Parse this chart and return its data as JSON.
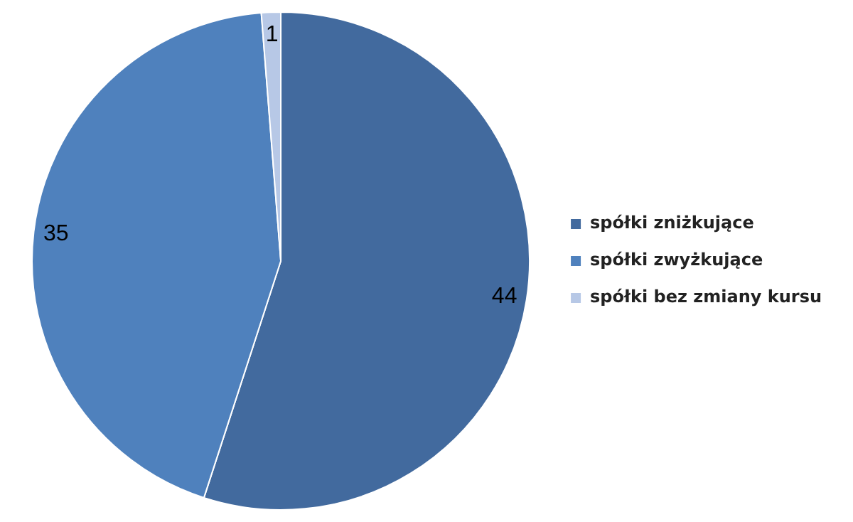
{
  "chart_data": {
    "type": "pie",
    "categories": [
      "spółki zniżkujące",
      "spółki zwyżkujące",
      "spółki bez zmiany kursu"
    ],
    "values": [
      44,
      35,
      1
    ],
    "colors": [
      "#426a9e",
      "#4f81bd",
      "#b7c8e6"
    ],
    "data_labels": true,
    "legend": "right"
  }
}
